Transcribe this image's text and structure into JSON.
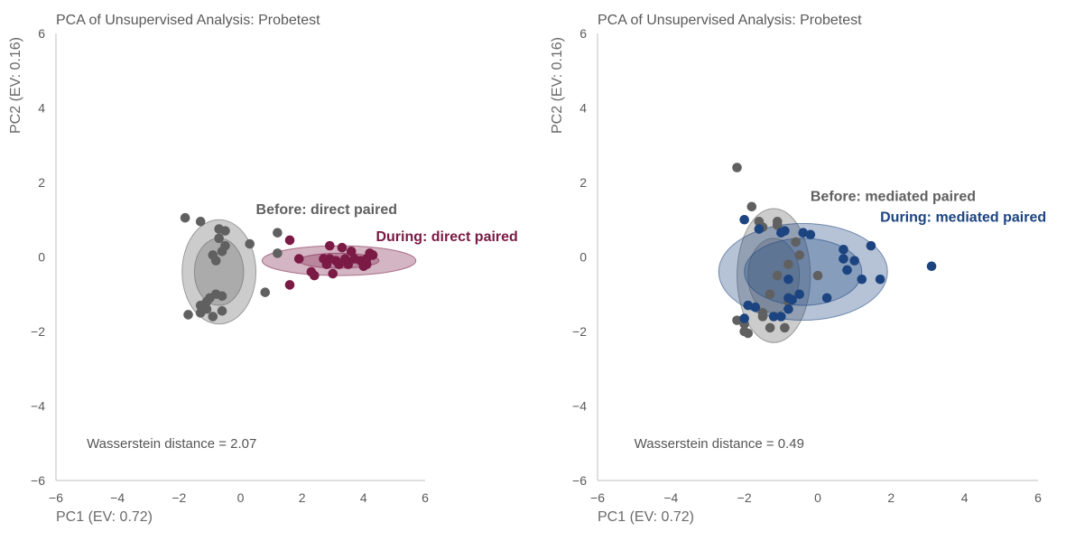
{
  "chart_data": [
    {
      "type": "scatter",
      "title": "PCA of Unsupervised Analysis: Probetest",
      "xlabel": "PC1 (EV: 0.72)",
      "ylabel": "PC2 (EV: 0.16)",
      "xlim": [
        -6,
        6
      ],
      "ylim": [
        -6,
        6
      ],
      "xticks": [
        "−6",
        "−4",
        "−2",
        "0",
        "2",
        "4",
        "6"
      ],
      "yticks": [
        "−6",
        "−4",
        "−2",
        "0",
        "2",
        "4",
        "6"
      ],
      "grid": false,
      "annotation": "Wasserstein distance = 2.07",
      "series": [
        {
          "name": "Before: direct paired",
          "color": "#606060",
          "ellipse": {
            "cx": -0.7,
            "cy": -0.4,
            "inner_rx": 0.8,
            "inner_ry": 0.9,
            "outer_rx": 1.2,
            "outer_ry": 1.4
          },
          "points": [
            [
              -1.8,
              1.05
            ],
            [
              -1.3,
              0.95
            ],
            [
              -0.7,
              0.75
            ],
            [
              -0.5,
              0.7
            ],
            [
              -0.7,
              0.5
            ],
            [
              -0.5,
              0.3
            ],
            [
              -0.6,
              0.15
            ],
            [
              -0.9,
              0.05
            ],
            [
              -0.8,
              -0.1
            ],
            [
              0.3,
              0.35
            ],
            [
              1.2,
              0.65
            ],
            [
              1.2,
              0.1
            ],
            [
              0.8,
              -0.95
            ],
            [
              -0.8,
              -1.0
            ],
            [
              -1.0,
              -1.1
            ],
            [
              -0.6,
              -1.05
            ],
            [
              -1.1,
              -1.2
            ],
            [
              -1.3,
              -1.3
            ],
            [
              -1.1,
              -1.4
            ],
            [
              -1.3,
              -1.5
            ],
            [
              -0.6,
              -1.45
            ],
            [
              -1.7,
              -1.55
            ],
            [
              -0.9,
              -1.6
            ]
          ]
        },
        {
          "name": "During: direct paired",
          "color": "#7a1a45",
          "ellipse": {
            "cx": 3.2,
            "cy": -0.1,
            "inner_rx": 1.3,
            "inner_ry": 0.2,
            "outer_rx": 2.5,
            "outer_ry": 0.4
          },
          "points": [
            [
              1.6,
              0.45
            ],
            [
              1.9,
              -0.05
            ],
            [
              2.9,
              0.3
            ],
            [
              3.3,
              0.25
            ],
            [
              3.6,
              0.15
            ],
            [
              2.7,
              -0.05
            ],
            [
              2.9,
              -0.05
            ],
            [
              3.1,
              -0.1
            ],
            [
              3.4,
              -0.05
            ],
            [
              3.7,
              -0.05
            ],
            [
              3.9,
              -0.1
            ],
            [
              4.1,
              -0.05
            ],
            [
              4.2,
              0.1
            ],
            [
              4.3,
              0.05
            ],
            [
              4.1,
              -0.2
            ],
            [
              4.0,
              -0.25
            ],
            [
              3.5,
              -0.2
            ],
            [
              3.2,
              -0.2
            ],
            [
              2.8,
              -0.2
            ],
            [
              2.3,
              -0.4
            ],
            [
              2.4,
              -0.5
            ],
            [
              3.0,
              -0.45
            ],
            [
              1.6,
              -0.75
            ]
          ]
        }
      ],
      "labels": [
        {
          "text": "Before: direct paired",
          "x": 0.5,
          "y": 1.15,
          "color": "#606060"
        },
        {
          "text": "During: direct paired",
          "x": 4.4,
          "y": 0.42,
          "color": "#7a1a45"
        }
      ]
    },
    {
      "type": "scatter",
      "title": "PCA of Unsupervised Analysis: Probetest",
      "xlabel": "PC1 (EV: 0.72)",
      "ylabel": "PC2 (EV: 0.16)",
      "xlim": [
        -6,
        6
      ],
      "ylim": [
        -6,
        6
      ],
      "xticks": [
        "−6",
        "−4",
        "−2",
        "0",
        "2",
        "4",
        "6"
      ],
      "yticks": [
        "−6",
        "−4",
        "−2",
        "0",
        "2",
        "4",
        "6"
      ],
      "grid": false,
      "annotation": "Wasserstein distance = 0.49",
      "series": [
        {
          "name": "Before: mediated paired",
          "color": "#606060",
          "ellipse": {
            "cx": -1.2,
            "cy": -0.5,
            "inner_rx": 0.7,
            "inner_ry": 1.0,
            "outer_rx": 1.0,
            "outer_ry": 1.8
          },
          "points": [
            [
              -2.2,
              2.4
            ],
            [
              -1.8,
              1.35
            ],
            [
              -1.6,
              0.95
            ],
            [
              -1.5,
              0.8
            ],
            [
              -1.1,
              0.95
            ],
            [
              -1.1,
              0.85
            ],
            [
              -0.6,
              0.4
            ],
            [
              -0.5,
              0.05
            ],
            [
              -0.8,
              -0.2
            ],
            [
              -1.1,
              -0.5
            ],
            [
              0.0,
              -0.5
            ],
            [
              -1.3,
              -1.0
            ],
            [
              -0.8,
              -1.1
            ],
            [
              -0.8,
              -1.2
            ],
            [
              -1.5,
              -1.5
            ],
            [
              -1.5,
              -1.6
            ],
            [
              -2.2,
              -1.7
            ],
            [
              -2.0,
              -1.8
            ],
            [
              -1.3,
              -1.9
            ],
            [
              -0.9,
              -1.9
            ],
            [
              -2.0,
              -2.0
            ],
            [
              -1.9,
              -2.05
            ]
          ]
        },
        {
          "name": "During: mediated paired",
          "color": "#1c4480",
          "ellipse": {
            "cx": -0.4,
            "cy": -0.4,
            "inner_rx": 1.6,
            "inner_ry": 0.9,
            "outer_rx": 2.3,
            "outer_ry": 1.3
          },
          "points": [
            [
              -2.0,
              1.0
            ],
            [
              -1.6,
              0.75
            ],
            [
              -1.0,
              0.65
            ],
            [
              -0.9,
              0.7
            ],
            [
              -0.4,
              0.65
            ],
            [
              -0.2,
              0.6
            ],
            [
              0.7,
              0.2
            ],
            [
              1.45,
              0.3
            ],
            [
              0.7,
              -0.05
            ],
            [
              1.0,
              -0.1
            ],
            [
              0.8,
              -0.35
            ],
            [
              1.2,
              -0.6
            ],
            [
              1.7,
              -0.6
            ],
            [
              3.1,
              -0.25
            ],
            [
              -0.8,
              -0.6
            ],
            [
              -0.5,
              -1.0
            ],
            [
              -0.8,
              -1.1
            ],
            [
              -0.7,
              -1.15
            ],
            [
              0.25,
              -1.1
            ],
            [
              -1.9,
              -1.3
            ],
            [
              -1.7,
              -1.35
            ],
            [
              -0.8,
              -1.4
            ],
            [
              -1.2,
              -1.6
            ],
            [
              -1.0,
              -1.6
            ],
            [
              -2.0,
              -1.65
            ]
          ]
        }
      ],
      "labels": [
        {
          "text": "Before: mediated paired",
          "x": -0.2,
          "y": 1.5,
          "color": "#606060"
        },
        {
          "text": "During: mediated paired",
          "x": 1.7,
          "y": 0.95,
          "color": "#1c4480"
        }
      ]
    }
  ]
}
